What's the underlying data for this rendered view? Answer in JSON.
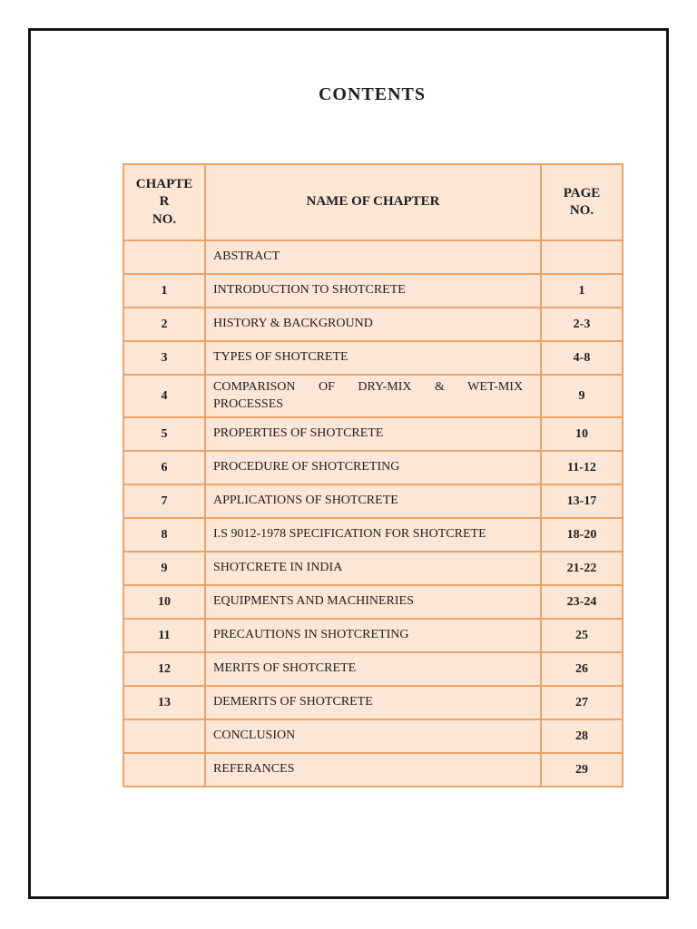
{
  "page": {
    "title": "CONTENTS"
  },
  "table": {
    "columns": {
      "chapter": "CHAPTE\nR\nNO.",
      "name": "NAME OF CHAPTER",
      "page": "PAGE\nNO."
    },
    "rows": [
      {
        "chapter_no": "",
        "name": "ABSTRACT",
        "page_no": ""
      },
      {
        "chapter_no": "1",
        "name": "INTRODUCTION TO SHOTCRETE",
        "page_no": "1"
      },
      {
        "chapter_no": "2",
        "name": "HISTORY & BACKGROUND",
        "page_no": "2-3"
      },
      {
        "chapter_no": "3",
        "name": "TYPES OF SHOTCRETE",
        "page_no": "4-8"
      },
      {
        "chapter_no": "4",
        "name": "COMPARISON OF DRY-MIX & WET-MIX\nPROCESSES",
        "page_no": "9",
        "justified": true
      },
      {
        "chapter_no": "5",
        "name": "PROPERTIES OF SHOTCRETE",
        "page_no": "10"
      },
      {
        "chapter_no": "6",
        "name": "PROCEDURE OF SHOTCRETING",
        "page_no": "11-12"
      },
      {
        "chapter_no": "7",
        "name": "APPLICATIONS OF SHOTCRETE",
        "page_no": "13-17"
      },
      {
        "chapter_no": "8",
        "name": "I.S 9012-1978 SPECIFICATION FOR SHOTCRETE",
        "page_no": "18-20"
      },
      {
        "chapter_no": "9",
        "name": "SHOTCRETE IN INDIA",
        "page_no": "21-22"
      },
      {
        "chapter_no": "10",
        "name": "EQUIPMENTS AND MACHINERIES",
        "page_no": "23-24"
      },
      {
        "chapter_no": "11",
        "name": "PRECAUTIONS IN SHOTCRETING",
        "page_no": "25"
      },
      {
        "chapter_no": "12",
        "name": "MERITS OF SHOTCRETE",
        "page_no": "26"
      },
      {
        "chapter_no": "13",
        "name": "DEMERITS OF SHOTCRETE",
        "page_no": "27"
      },
      {
        "chapter_no": "",
        "name": "CONCLUSION",
        "page_no": "28"
      },
      {
        "chapter_no": "",
        "name": "REFERANCES",
        "page_no": "29"
      }
    ],
    "colors": {
      "cell_fill": "#fce6d5",
      "grid_border": "#eda268",
      "frame_border": "#141414"
    }
  }
}
